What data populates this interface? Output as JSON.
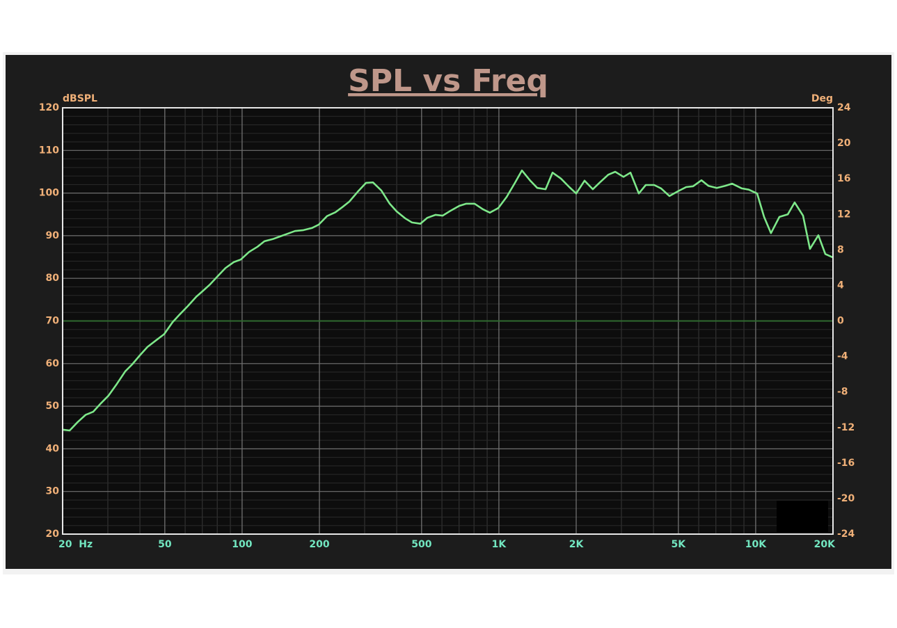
{
  "chart_data": {
    "type": "line",
    "title": "SPL vs Freq",
    "ylabel": "dBSPL",
    "y2label": "Deg",
    "xscale": "log",
    "grid": true,
    "xlim": [
      20,
      20000
    ],
    "xticks": [
      {
        "value": 20,
        "label": "20  Hz"
      },
      50,
      100,
      200,
      500,
      {
        "value": 1000,
        "label": "1K"
      },
      {
        "value": 2000,
        "label": "2K"
      },
      {
        "value": 5000,
        "label": "5K"
      },
      {
        "value": 10000,
        "label": "10K"
      },
      {
        "value": 20000,
        "label": "20K"
      }
    ],
    "ylim": [
      20,
      120
    ],
    "yticks": [
      20,
      30,
      40,
      50,
      60,
      70,
      80,
      90,
      100,
      110,
      120
    ],
    "y2lim": [
      -24,
      24
    ],
    "y2ticks": [
      -24,
      -20,
      -16,
      -12,
      -8,
      -4,
      0,
      4,
      8,
      12,
      16,
      20,
      24
    ],
    "x": [
      20,
      21.3,
      22.9,
      24.6,
      26.3,
      28.2,
      30.2,
      32.5,
      35.1,
      37.3,
      40.2,
      42.8,
      46.1,
      49.7,
      53.6,
      57.1,
      61.5,
      66.3,
      70.5,
      75.1,
      80.9,
      86.1,
      92.8,
      98.8,
      106.5,
      114.8,
      122.2,
      131.7,
      140.1,
      151,
      160.7,
      173.3,
      186.8,
      198.8,
      214.2,
      230.9,
      245.7,
      261.5,
      281.9,
      303.9,
      323.4,
      348.6,
      375.7,
      399.8,
      430.9,
      458.5,
      494.3,
      526.1,
      567,
      603.4,
      650.4,
      701,
      746,
      804,
      867,
      922.6,
      994.6,
      1072,
      1155,
      1229,
      1325,
      1410,
      1520,
      1618,
      1744,
      1880,
      2000,
      2156,
      2322,
      2472,
      2666,
      2838,
      3058,
      3254,
      3508,
      3733,
      4023,
      4282,
      4614,
      4974,
      5362,
      5706,
      6150,
      6546,
      7054,
      7603,
      8091,
      8831,
      9399,
      10130,
      10780,
      11473,
      12366,
      13328,
      14184,
      15290,
      16272,
      17540,
      18672,
      20000
    ],
    "series": [
      {
        "name": "SPL",
        "color": "#7ee88a",
        "values": [
          44.5,
          44.3,
          46.3,
          48.0,
          48.7,
          50.7,
          52.5,
          55.2,
          58.2,
          59.8,
          62.1,
          63.9,
          65.4,
          66.9,
          69.7,
          71.5,
          73.5,
          75.7,
          77.1,
          78.6,
          80.7,
          82.4,
          83.8,
          84.4,
          86.2,
          87.4,
          88.7,
          89.2,
          89.8,
          90.5,
          91.1,
          91.3,
          91.8,
          92.6,
          94.6,
          95.5,
          96.7,
          98.0,
          100.3,
          102.4,
          102.5,
          100.6,
          97.5,
          95.7,
          94.1,
          93.1,
          92.8,
          94.2,
          94.9,
          94.7,
          95.9,
          97.0,
          97.5,
          97.5,
          96.2,
          95.4,
          96.5,
          99.1,
          102.4,
          105.3,
          102.9,
          101.2,
          100.9,
          104.8,
          103.4,
          101.4,
          99.9,
          102.9,
          100.9,
          102.5,
          104.3,
          105.0,
          103.8,
          104.8,
          99.9,
          101.9,
          101.9,
          101.1,
          99.3,
          100.4,
          101.4,
          101.6,
          103.0,
          101.7,
          101.2,
          101.7,
          102.2,
          101.1,
          100.8,
          99.9,
          94.4,
          90.6,
          94.4,
          95.0,
          97.8,
          94.7,
          86.9,
          90.1,
          85.7,
          84.9
        ]
      }
    ]
  }
}
